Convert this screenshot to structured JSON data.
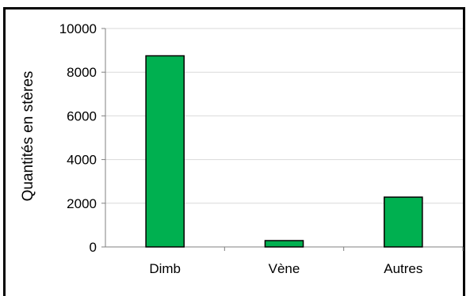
{
  "chart_data": {
    "type": "bar",
    "title": "",
    "xlabel": "",
    "ylabel": "Quantités en stères",
    "categories": [
      "Dimb",
      "Vène",
      "Autres"
    ],
    "values": [
      8750,
      290,
      2280
    ],
    "ylim": [
      0,
      10000
    ],
    "yticks": [
      0,
      2000,
      4000,
      6000,
      8000,
      10000
    ],
    "grid": true,
    "legend": "none",
    "bar_color": "#00b050",
    "bar_edge_color": "#000000",
    "grid_color": "#d9d9d9"
  }
}
